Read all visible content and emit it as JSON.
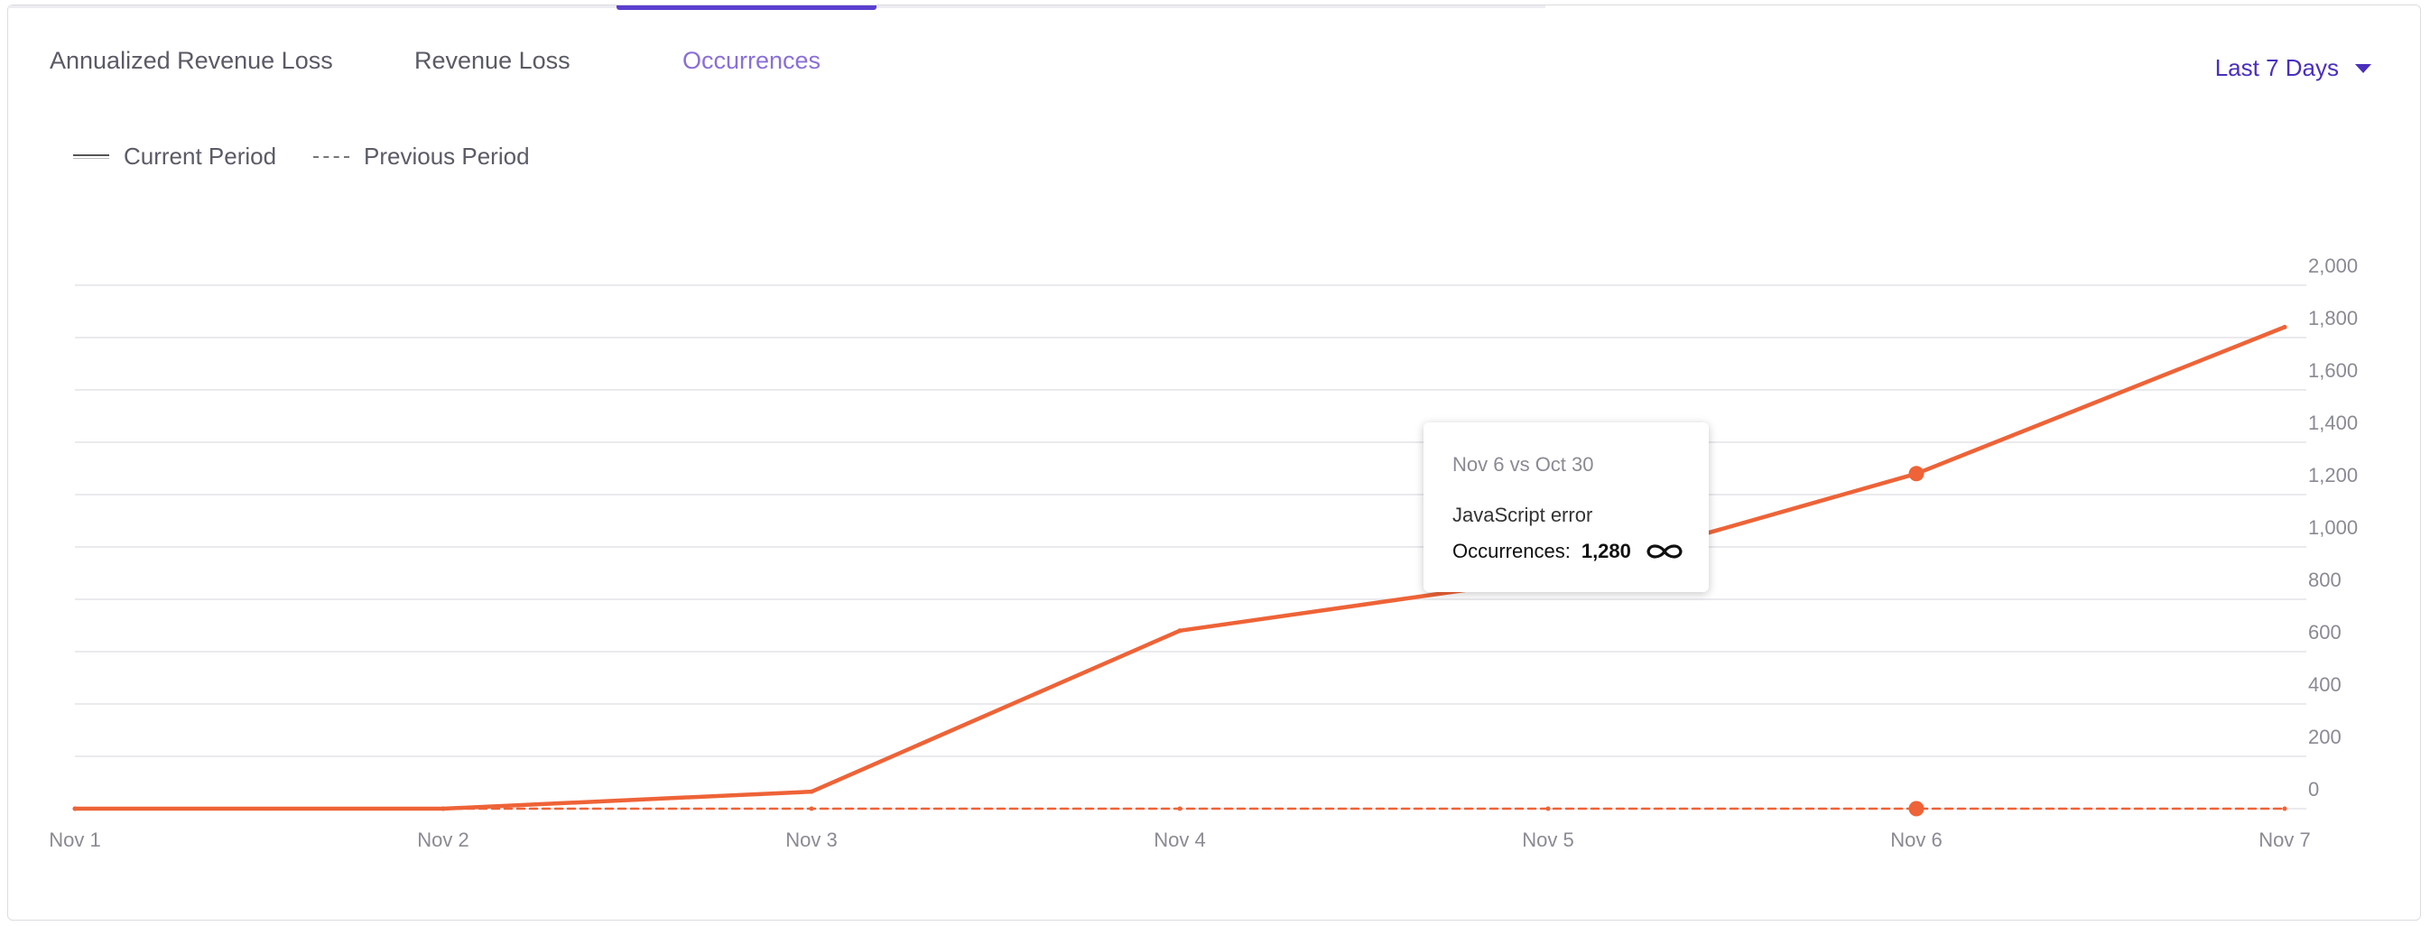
{
  "tabs": [
    {
      "label": "Annualized Revenue Loss",
      "active": false
    },
    {
      "label": "Revenue Loss",
      "active": false
    },
    {
      "label": "Occurrences",
      "active": true
    }
  ],
  "range_select": {
    "label": "Last 7 Days"
  },
  "legend": {
    "current": "Current Period",
    "previous": "Previous Period"
  },
  "tooltip": {
    "date": "Nov 6 vs Oct 30",
    "series": "JavaScript error",
    "metric": "Occurrences:",
    "value": "1,280",
    "icon": "infinity-icon"
  },
  "colors": {
    "accent": "#5b3fcf",
    "series": "#ee6337",
    "grid": "#e3e3e8",
    "tab_active": "#8a6fd8"
  },
  "chart_data": {
    "type": "line",
    "categories": [
      "Nov 1",
      "Nov 2",
      "Nov 3",
      "Nov 4",
      "Nov 5",
      "Nov 6",
      "Nov 7"
    ],
    "series": [
      {
        "name": "Current Period",
        "values": [
          0,
          0,
          65,
          680,
          880,
          1280,
          1840
        ],
        "style": "solid"
      },
      {
        "name": "Previous Period",
        "values": [
          0,
          0,
          0,
          0,
          0,
          0,
          0
        ],
        "style": "dashed"
      }
    ],
    "yticks": [
      0,
      200,
      400,
      600,
      800,
      1000,
      1200,
      1400,
      1600,
      1800,
      2000
    ],
    "ytick_labels": [
      "0",
      "200",
      "400",
      "600",
      "800",
      "1,000",
      "1,200",
      "1,400",
      "1,600",
      "1,800",
      "2,000"
    ],
    "ylim": [
      0,
      2000
    ],
    "highlight_index": 5,
    "y_axis_side": "right",
    "grid": true
  }
}
